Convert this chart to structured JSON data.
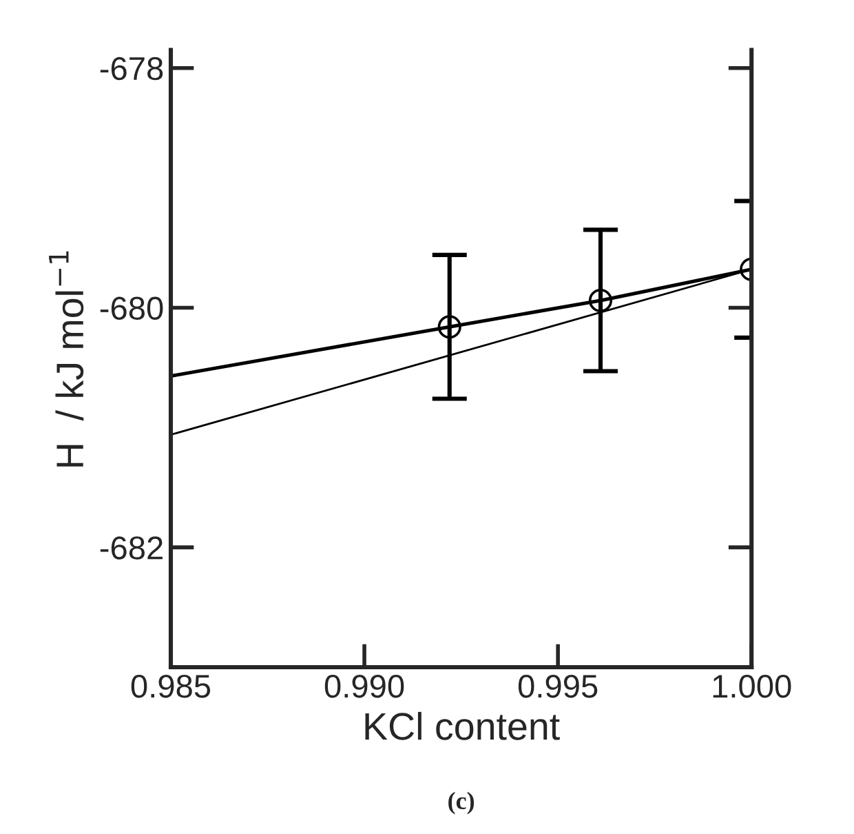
{
  "chart_data": {
    "type": "line",
    "xlabel": "KCl content",
    "ylabel": "H  / kJ mol$^{−1}$",
    "xlim": [
      0.985,
      1.0
    ],
    "xticks": [
      {
        "value": 0.985,
        "label": "0.985"
      },
      {
        "value": 0.99,
        "label": "0.990"
      },
      {
        "value": 0.995,
        "label": "0.995"
      },
      {
        "value": 1.0,
        "label": "1.000"
      }
    ],
    "ylim": [
      -683,
      -677.85
    ],
    "yticks": [
      -678,
      -680,
      -682
    ],
    "series": [
      {
        "color": "#000000",
        "x": [
          0.985,
          0.9922,
          0.9961,
          1.0
        ],
        "values": [
          -680.57,
          -680.16,
          -679.94,
          -679.68
        ]
      },
      {
        "color": "#000000",
        "x": [
          0.985,
          1.0
        ],
        "values": [
          -681.06,
          -679.68
        ]
      },
      {
        "type": "scatter",
        "color": "#000000",
        "marker": "circle",
        "x": [
          0.9922,
          0.9961,
          1.0
        ],
        "values": [
          -680.16,
          -679.94,
          -679.68
        ],
        "errors": [
          0.6,
          0.59,
          0.57
        ]
      }
    ],
    "grid": false,
    "legend": false,
    "annotations": [
      "(c)"
    ]
  }
}
